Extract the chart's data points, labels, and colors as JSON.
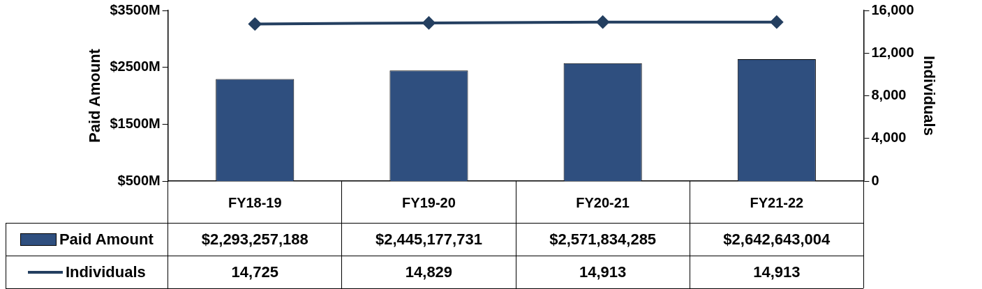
{
  "chart_data": {
    "type": "bar",
    "categories": [
      "FY18-19",
      "FY19-20",
      "FY20-21",
      "FY21-22"
    ],
    "series": [
      {
        "name": "Paid Amount",
        "color": "#2f4f7f",
        "values": [
          2293257188,
          2445177731,
          2571834285,
          2642643004
        ],
        "value_labels": [
          "$2,293,257,188",
          "$2,445,177,731",
          "$2,571,834,285",
          "$2,642,643,004"
        ]
      },
      {
        "name": "Individuals",
        "type": "line",
        "axis": "y2",
        "color": "#243f60",
        "values": [
          14725,
          14829,
          14913,
          14913
        ],
        "value_labels": [
          "14,725",
          "14,829",
          "14,913",
          "14,913"
        ]
      }
    ],
    "ylabel": "Paid Amount",
    "y2label": "Individuals",
    "ylim": [
      500000000,
      3500000000
    ],
    "yticks": [
      {
        "value": 500000000,
        "label": "$500M"
      },
      {
        "value": 1500000000,
        "label": "$1500M"
      },
      {
        "value": 2500000000,
        "label": "$2500M"
      },
      {
        "value": 3500000000,
        "label": "$3500M"
      }
    ],
    "y2lim": [
      0,
      16000
    ],
    "y2ticks": [
      0,
      {
        "value": 4000,
        "label": "4,000"
      },
      {
        "value": 8000,
        "label": "8,000"
      },
      {
        "value": 12000,
        "label": "12,000"
      },
      {
        "value": 16000,
        "label": "16,000"
      }
    ],
    "legend": "bottom",
    "marker": "diamond",
    "line_style": "solid"
  }
}
